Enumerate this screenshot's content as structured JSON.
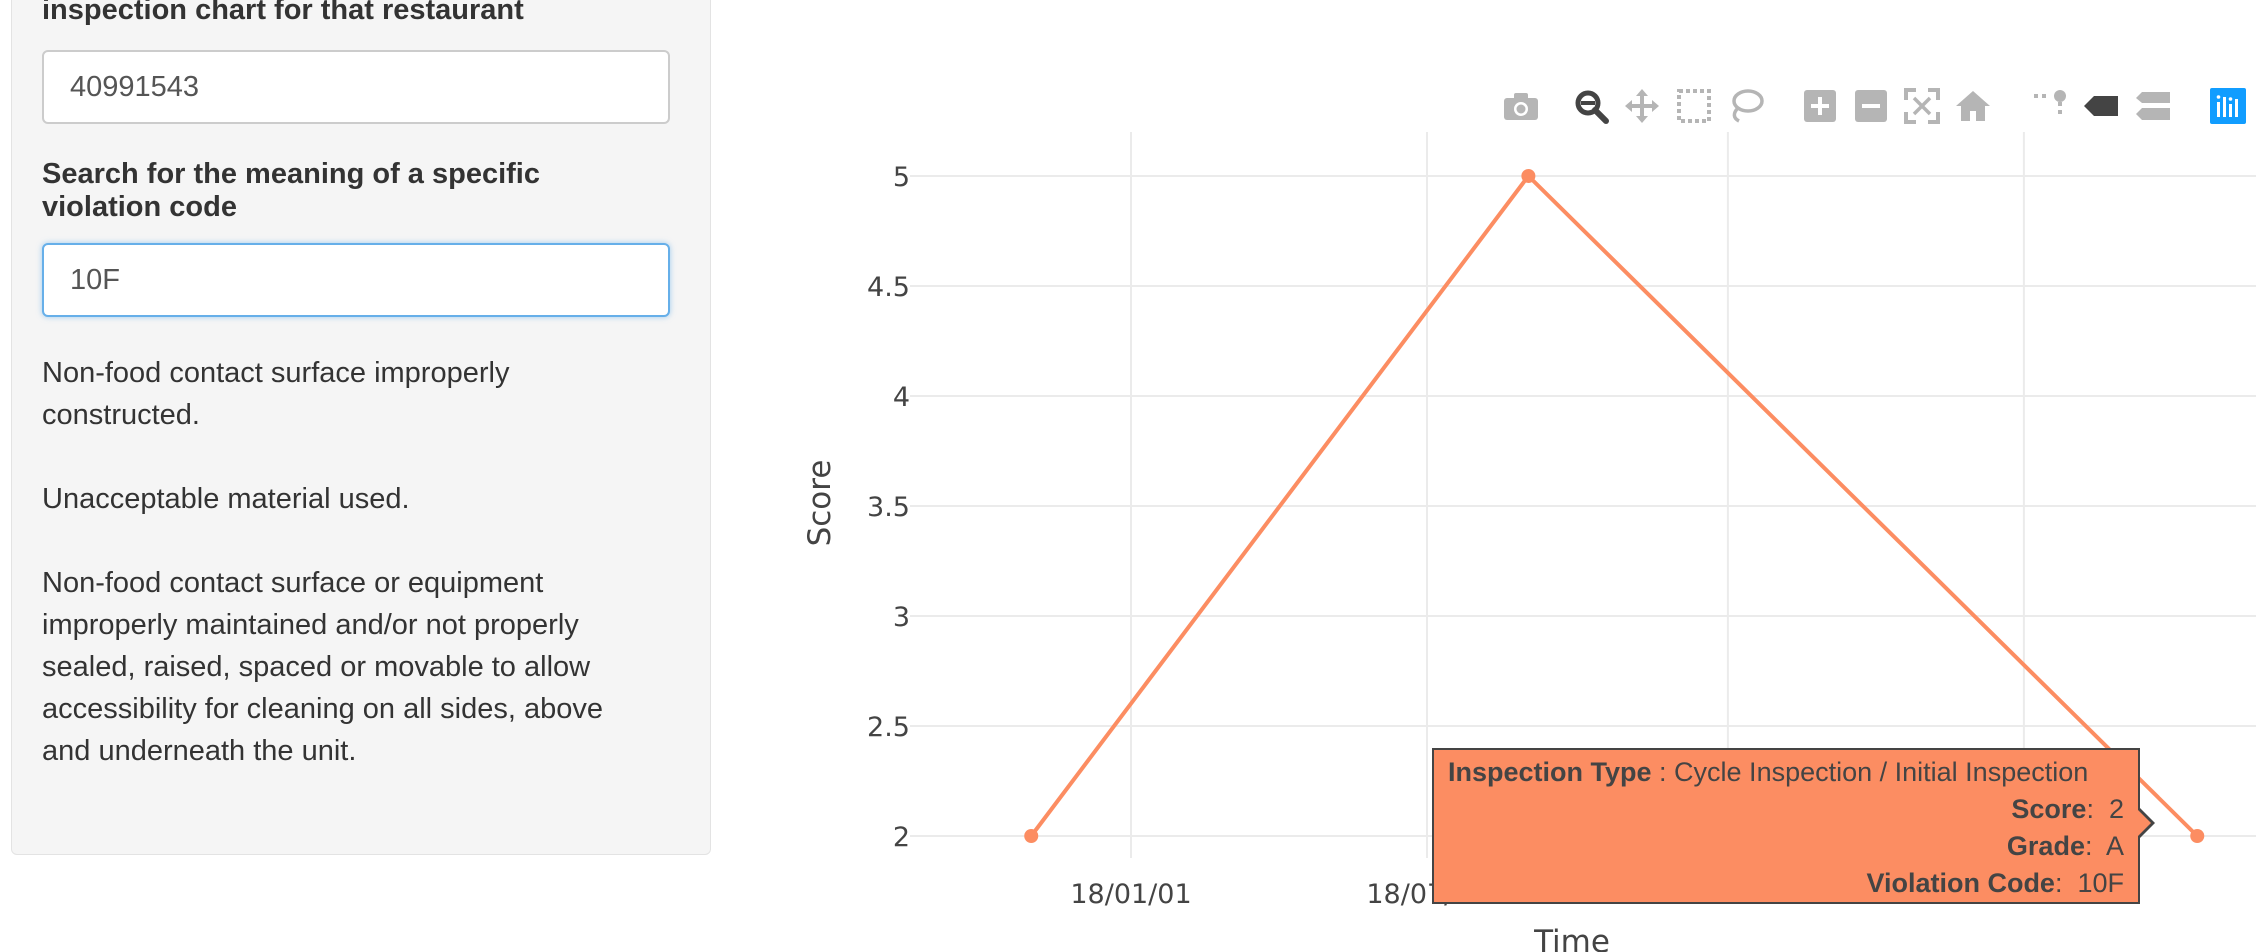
{
  "sidebar": {
    "restaurant_label": "inspection chart for that restaurant",
    "restaurant_value": "40991543",
    "violation_label_line1": "Search for the meaning of a specific",
    "violation_label_line2": "violation code",
    "violation_value": "10F",
    "descriptions": [
      [
        "Non-food contact surface improperly",
        "constructed."
      ],
      [
        "Unacceptable material used."
      ],
      [
        "Non-food contact surface or equipment",
        "improperly maintained and/or not properly",
        "sealed, raised, spaced or movable to allow",
        "accessibility for cleaning on all sides, above",
        "and underneath the unit."
      ]
    ]
  },
  "toolbar": {
    "icons": [
      "camera-icon",
      "zoom-icon",
      "pan-icon",
      "box-select-icon",
      "lasso-select-icon",
      "zoom-in-icon",
      "zoom-out-icon",
      "autoscale-icon",
      "reset-axes-icon",
      "spike-lines-icon",
      "hover-closest-icon",
      "hover-compare-icon",
      "plotly-logo-icon"
    ]
  },
  "chart_data": {
    "type": "line",
    "xlabel": "Time",
    "ylabel": "Score",
    "x_tick_labels": [
      "18/01/01",
      "18/07/01"
    ],
    "y_ticks": [
      "2",
      "2.5",
      "3",
      "3.5",
      "4",
      "4.5",
      "5"
    ],
    "ylim": [
      1.9,
      5.2
    ],
    "line_color": "#fc8d62",
    "series": [
      {
        "x": [
          "2017-11-01",
          "2018-09-01",
          "2019-10-15"
        ],
        "values": [
          2,
          5,
          2
        ]
      }
    ]
  },
  "tooltip": {
    "type_label": "Inspection Type",
    "type_value": "Cycle Inspection / Initial Inspection",
    "score_label": "Score",
    "score_value": "2",
    "grade_label": "Grade",
    "grade_value": "A",
    "code_label": "Violation Code",
    "code_value": "10F"
  }
}
